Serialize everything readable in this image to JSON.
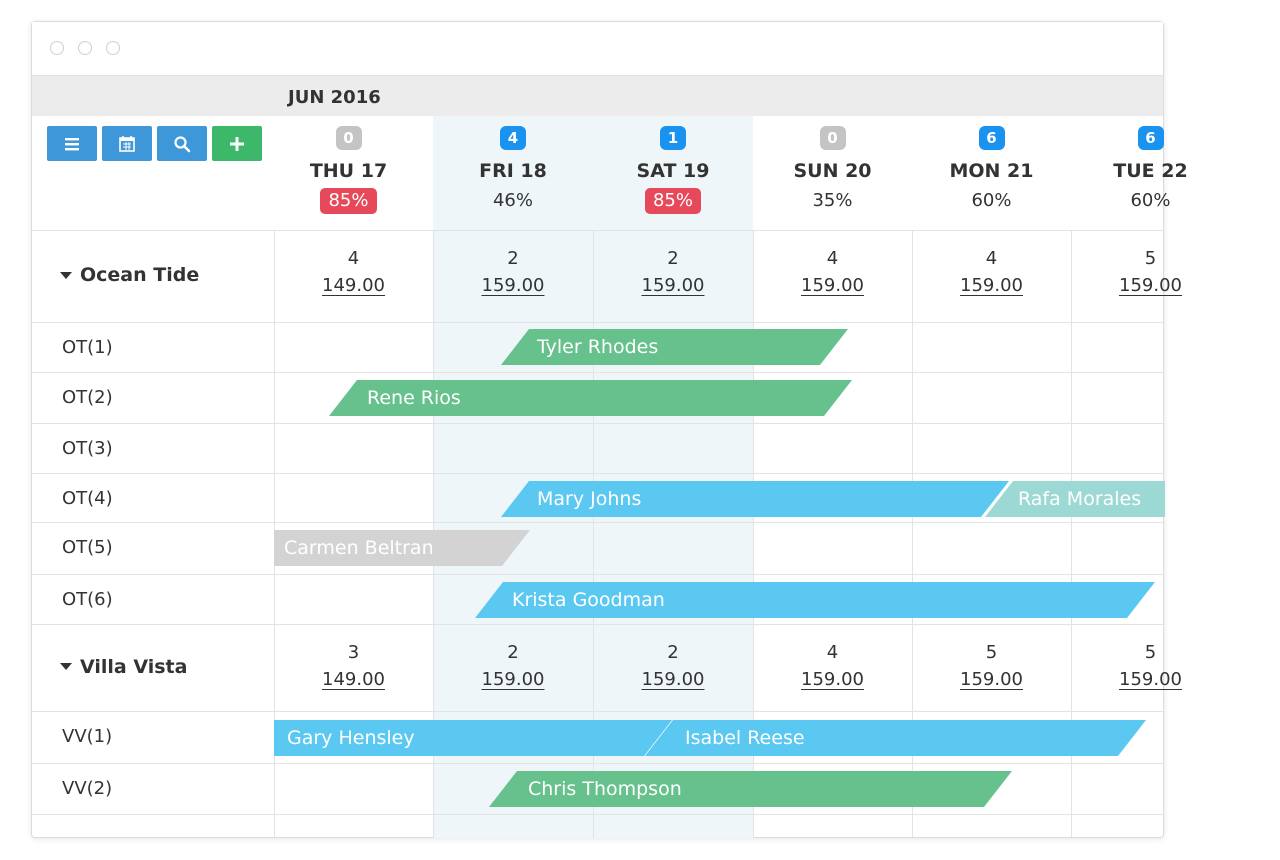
{
  "colors": {
    "green": "#66c18c",
    "blue": "#5bc8f2",
    "teal": "#9dd9d4",
    "grey": "#d3d3d3",
    "badge_grey": "#c4c4c4",
    "badge_blue": "#1992f0",
    "red": "#e5495a",
    "btn_blue": "#3d97d9",
    "btn_green": "#3db86b"
  },
  "calendar": {
    "month": "JUN 2016"
  },
  "toolbar": {
    "buttons": [
      {
        "icon": "menu-icon"
      },
      {
        "icon": "calendar-icon"
      },
      {
        "icon": "search-icon"
      },
      {
        "icon": "plus-icon"
      }
    ]
  },
  "days": [
    {
      "badge": "0",
      "badge_color": "grey",
      "name": "THU 17",
      "occupancy": "85%",
      "alert": true
    },
    {
      "badge": "4",
      "badge_color": "blue",
      "name": "FRI 18",
      "occupancy": "46%",
      "alert": false
    },
    {
      "badge": "1",
      "badge_color": "blue",
      "name": "SAT 19",
      "occupancy": "85%",
      "alert": true
    },
    {
      "badge": "0",
      "badge_color": "grey",
      "name": "SUN 20",
      "occupancy": "35%",
      "alert": false
    },
    {
      "badge": "6",
      "badge_color": "blue",
      "name": "MON 21",
      "occupancy": "60%",
      "alert": false
    },
    {
      "badge": "6",
      "badge_color": "blue",
      "name": "TUE 22",
      "occupancy": "60%",
      "alert": false
    }
  ],
  "groups": [
    {
      "name": "Ocean Tide",
      "availability": [
        {
          "count": "4",
          "price": "149.00"
        },
        {
          "count": "2",
          "price": "159.00"
        },
        {
          "count": "2",
          "price": "159.00"
        },
        {
          "count": "4",
          "price": "159.00"
        },
        {
          "count": "4",
          "price": "159.00"
        },
        {
          "count": "5",
          "price": "159.00"
        }
      ],
      "rooms": [
        "OT(1)",
        "OT(2)",
        "OT(3)",
        "OT(4)",
        "OT(5)",
        "OT(6)"
      ]
    },
    {
      "name": "Villa Vista",
      "availability": [
        {
          "count": "3",
          "price": "149.00"
        },
        {
          "count": "2",
          "price": "159.00"
        },
        {
          "count": "2",
          "price": "159.00"
        },
        {
          "count": "4",
          "price": "159.00"
        },
        {
          "count": "5",
          "price": "159.00"
        },
        {
          "count": "5",
          "price": "159.00"
        }
      ],
      "rooms": [
        "VV(1)",
        "VV(2)"
      ]
    }
  ],
  "bookings": [
    {
      "guest": "Tyler Rhodes",
      "room": "OT(1)",
      "color": "green"
    },
    {
      "guest": "Rene Rios",
      "room": "OT(2)",
      "color": "green"
    },
    {
      "guest": "Mary Johns",
      "room": "OT(4)",
      "color": "blue"
    },
    {
      "guest": "Rafa Morales",
      "room": "OT(4)",
      "color": "teal"
    },
    {
      "guest": "Carmen Beltran",
      "room": "OT(5)",
      "color": "grey"
    },
    {
      "guest": "Krista Goodman",
      "room": "OT(6)",
      "color": "blue"
    },
    {
      "guest": "Gary Hensley",
      "room": "VV(1)",
      "color": "blue"
    },
    {
      "guest": "Isabel Reese",
      "room": "VV(1)",
      "color": "blue"
    },
    {
      "guest": "Chris Thompson",
      "room": "VV(2)",
      "color": "green"
    }
  ]
}
